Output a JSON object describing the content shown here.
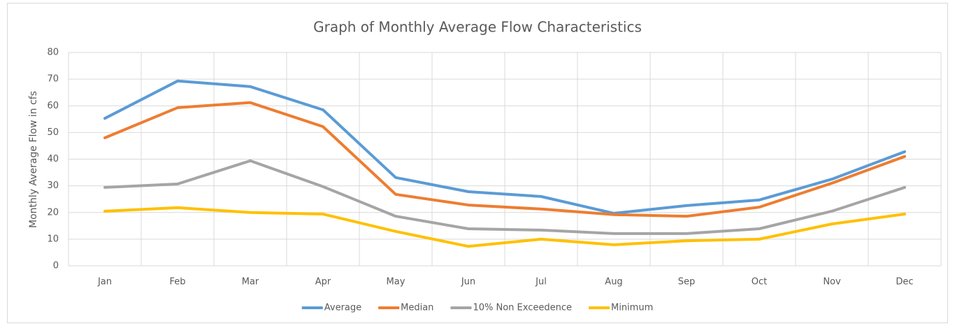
{
  "chart_data": {
    "type": "line",
    "title": "Graph of Monthly Average Flow Characteristics",
    "y_label": "Monthly Average Flow in cfs",
    "categories": [
      "Jan",
      "Feb",
      "Mar",
      "Apr",
      "May",
      "Jun",
      "Jul",
      "Aug",
      "Sep",
      "Oct",
      "Nov",
      "Dec"
    ],
    "series": [
      {
        "name": "Average",
        "color": "#5b9bd5",
        "values": [
          55.3,
          69.3,
          67.2,
          58.5,
          33.1,
          27.8,
          26,
          19.7,
          22.6,
          24.7,
          32.5,
          42.8
        ]
      },
      {
        "name": "Median",
        "color": "#ed7d31",
        "values": [
          48,
          59.3,
          61.2,
          52.2,
          26.8,
          22.8,
          21.3,
          19.2,
          18.6,
          22,
          31,
          41
        ]
      },
      {
        "name": "10% Non Exceedence",
        "color": "#a5a5a5",
        "values": [
          29.4,
          30.7,
          39.4,
          29.7,
          18.6,
          13.9,
          13.4,
          12.1,
          12.1,
          13.9,
          20.5,
          29.4
        ]
      },
      {
        "name": "Minimum",
        "color": "#ffc000",
        "values": [
          20.5,
          21.8,
          20,
          19.4,
          12.9,
          7.3,
          10,
          7.9,
          9.4,
          10,
          15.7,
          19.4
        ]
      }
    ],
    "ylim": [
      0,
      80
    ],
    "yticks": [
      0,
      10,
      20,
      30,
      40,
      50,
      60,
      70,
      80
    ],
    "grid": true,
    "legend": "bottom"
  }
}
